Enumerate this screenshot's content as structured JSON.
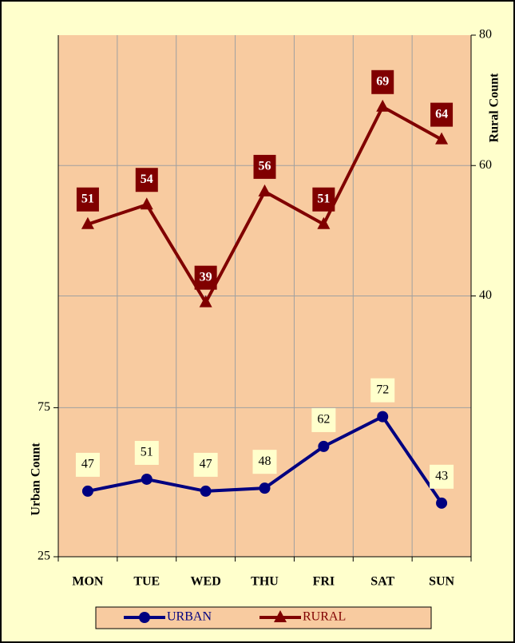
{
  "chart_data": {
    "type": "line",
    "categories": [
      "MON",
      "TUE",
      "WED",
      "THU",
      "FRI",
      "SAT",
      "SUN"
    ],
    "series": [
      {
        "name": "URBAN",
        "color": "#000080",
        "values": [
          47,
          51,
          47,
          48,
          62,
          72,
          43
        ]
      },
      {
        "name": "RURAL",
        "color": "#800000",
        "values": [
          51,
          54,
          39,
          56,
          51,
          69,
          64
        ],
        "axis": "y2"
      }
    ],
    "ylabel": "Urban Count",
    "y2label": "Rural Count",
    "ylim": [
      25,
      200
    ],
    "yticks": [
      25,
      75
    ],
    "y2lim": [
      0,
      80
    ],
    "y2ticks": [
      40,
      60,
      80
    ],
    "grid": true,
    "legend": "bottom"
  }
}
